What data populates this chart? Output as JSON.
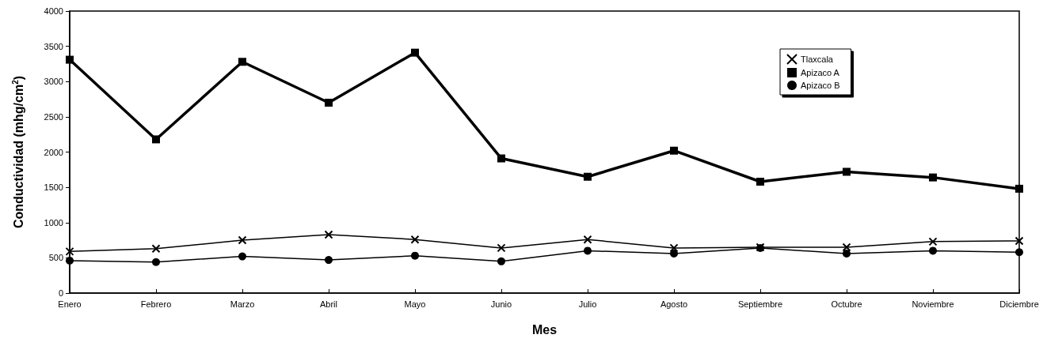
{
  "chart_data": {
    "type": "line",
    "xlabel": "Mes",
    "ylabel": "Conductividad (mhg/cm$^{2}$)",
    "categories": [
      "Enero",
      "Febrero",
      "Marzo",
      "Abril",
      "Mayo",
      "Junio",
      "Julio",
      "Agosto",
      "Septiembre",
      "Octubre",
      "Noviembre",
      "Diciembre"
    ],
    "series": [
      {
        "name": "Tlaxcala",
        "color": "#000000",
        "marker": "cross",
        "values": [
          590,
          630,
          750,
          830,
          760,
          640,
          760,
          640,
          650,
          650,
          730,
          740
        ]
      },
      {
        "name": "Apizaco A",
        "color": "#000000",
        "marker": "square",
        "values": [
          3310,
          2180,
          3280,
          2700,
          3410,
          1910,
          1650,
          2020,
          1580,
          1720,
          1640,
          1480
        ]
      },
      {
        "name": "Apizaco B",
        "color": "#000000",
        "marker": "circle",
        "values": [
          460,
          440,
          520,
          470,
          530,
          450,
          600,
          560,
          640,
          560,
          600,
          580
        ]
      }
    ],
    "ylim": [
      0,
      4000
    ],
    "yticks": [
      0,
      500,
      1000,
      1500,
      2000,
      2500,
      3000,
      3500,
      4000
    ],
    "grid": false,
    "legend": "top right",
    "line_style": "solid"
  }
}
